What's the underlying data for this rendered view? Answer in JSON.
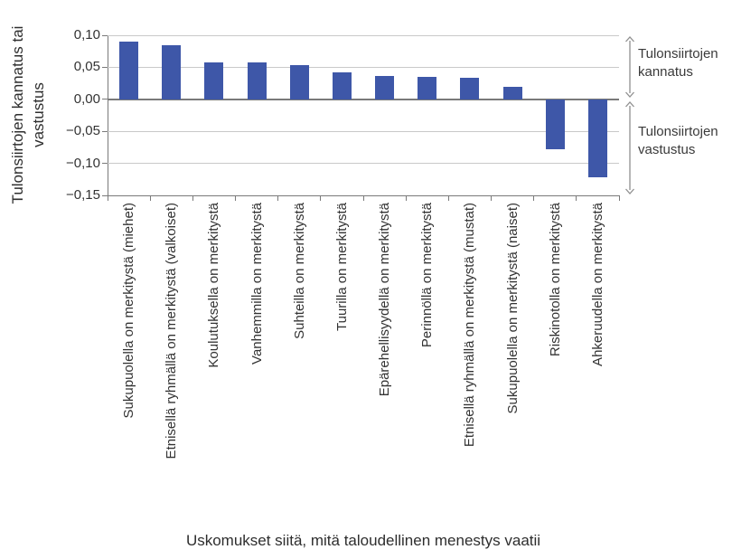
{
  "chart_data": {
    "type": "bar",
    "title": "",
    "xlabel": "Uskomukset siitä, mitä taloudellinen menestys vaatii",
    "ylabel": "Tulonsiirtojen kannatus tai vastustus",
    "ylabel_lines": [
      "Tulonsiirtojen kannatus tai",
      "vastustus"
    ],
    "categories": [
      "Sukupuolella on merkitystä (miehet)",
      "Etnisellä ryhmällä on merkitystä (valkoiset)",
      "Koulutuksella on merkitystä",
      "Vanhemmilla on merkitystä",
      "Suhteilla on merkitystä",
      "Tuurilla on merkitystä",
      "Epärehellisyydellä on merkitystä",
      "Perinnöllä on merkitystä",
      "Etnisellä ryhmällä on merkitystä (mustat)",
      "Sukupuolella on merkitystä (naiset)",
      "Riskinotolla on merkitystä",
      "Ahkeruudella on merkitystä"
    ],
    "values": [
      0.09,
      0.085,
      0.058,
      0.057,
      0.054,
      0.042,
      0.036,
      0.035,
      0.033,
      0.019,
      -0.078,
      -0.122
    ],
    "ylim": [
      -0.15,
      0.1
    ],
    "ytick_step": 0.05,
    "ytick_labels": [
      "0,10",
      "0,05",
      "0,00",
      "−0,05",
      "−0,10",
      "−0,15"
    ],
    "grid": "horizontal",
    "legend": "none",
    "bar_color": "#3e57a8",
    "annotations": [
      {
        "label": "Tulonsiirtojen kannatus",
        "region": "positive"
      },
      {
        "label": "Tulonsiirtojen vastustus",
        "region": "negative"
      }
    ]
  },
  "colors": {
    "bar": "#3e57a8",
    "gridline": "#c9c9c9",
    "axis": "#7a7a7a",
    "arrow": "#8f8f8f",
    "text": "#333333"
  }
}
